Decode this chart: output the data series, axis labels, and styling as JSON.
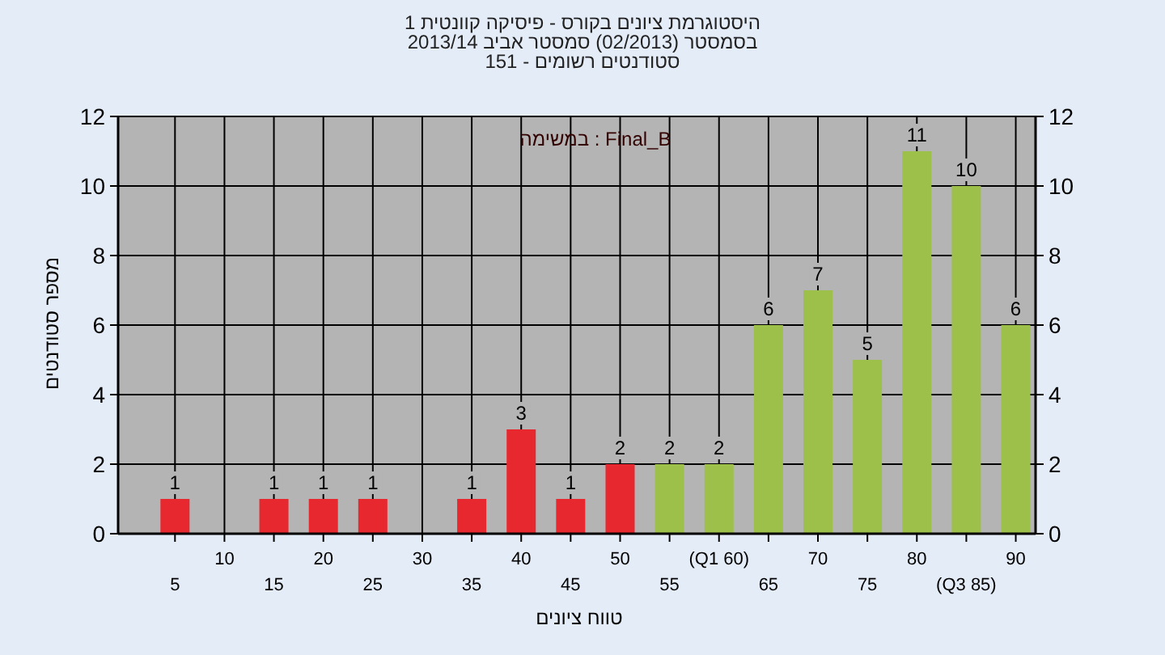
{
  "chart_data": {
    "type": "bar",
    "title": "היסטוגרמת ציונים בקורס - פיסיקה קוונטית 1",
    "subtitle": "בסמסטר  (02/2013)  סמסטר אביב 2013/14",
    "annotations": [
      "סטודנטים רשומים - 151",
      "Final_B : במשימה"
    ],
    "xlabel": "טווח ציונים",
    "ylabel": "מספר סטודנטים",
    "categories": [
      "5",
      "10",
      "15",
      "20",
      "25",
      "30",
      "35",
      "40",
      "45",
      "50",
      "55",
      "(Q1 60)",
      "65",
      "70",
      "75",
      "80",
      "(Q3 85)",
      "90"
    ],
    "values": [
      1,
      0,
      1,
      1,
      1,
      0,
      1,
      3,
      1,
      2,
      2,
      2,
      6,
      7,
      5,
      11,
      10,
      6
    ],
    "colors": [
      "#e8282f",
      "#e8282f",
      "#e8282f",
      "#e8282f",
      "#e8282f",
      "#e8282f",
      "#e8282f",
      "#e8282f",
      "#e8282f",
      "#e8282f",
      "#9cc04a",
      "#9cc04a",
      "#9cc04a",
      "#9cc04a",
      "#9cc04a",
      "#9cc04a",
      "#9cc04a",
      "#9cc04a"
    ],
    "value_labels": [
      "1",
      null,
      "1",
      "1",
      "1",
      null,
      "1",
      "3",
      "1",
      "2",
      "2",
      "2",
      "6",
      "7",
      "5",
      "11",
      "10",
      "6"
    ],
    "ylim": [
      0,
      12
    ],
    "yticks": [
      0,
      2,
      4,
      6,
      8,
      10,
      12
    ],
    "y2lim": [
      0,
      12
    ],
    "y2ticks": [
      0,
      2,
      4,
      6,
      8,
      10,
      12
    ],
    "grid": true
  }
}
